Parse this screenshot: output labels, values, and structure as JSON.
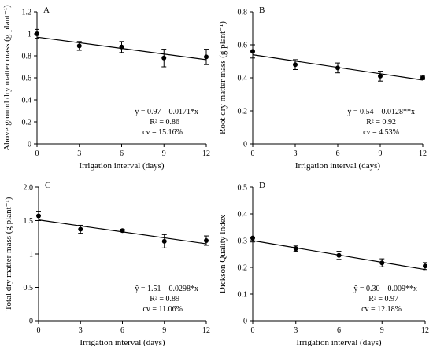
{
  "chart_data": [
    {
      "type": "scatter",
      "panel_label": "A",
      "xlabel": "Irrigation interval (days)",
      "ylabel": "Above ground dry matter mass (g plant⁻¹)",
      "xlim": [
        0,
        12
      ],
      "ylim": [
        0,
        1.2
      ],
      "x_ticks": [
        0,
        3,
        6,
        9,
        12
      ],
      "y_ticks": [
        0,
        0.2,
        0.4,
        0.6,
        0.8,
        1.0,
        1.2
      ],
      "y_tick_labels": [
        "0",
        "0.2",
        "0.4",
        "0.6",
        "0.8",
        "1",
        "1.2"
      ],
      "x": [
        0,
        3,
        6,
        9,
        12
      ],
      "values": [
        1.0,
        0.89,
        0.88,
        0.78,
        0.79
      ],
      "errors": [
        0.04,
        0.04,
        0.05,
        0.08,
        0.07
      ],
      "fit": {
        "intercept": 0.97,
        "slope": -0.0171
      },
      "equation": "ŷ = 0.97 – 0.0171*x",
      "r2": "R² = 0.86",
      "cv": "cv = 15.16%"
    },
    {
      "type": "scatter",
      "panel_label": "B",
      "xlabel": "Irrigation interval (days)",
      "ylabel": "Root dry matter mass (g plant⁻¹)",
      "xlim": [
        0,
        12
      ],
      "ylim": [
        0,
        0.8
      ],
      "x_ticks": [
        0,
        3,
        6,
        9,
        12
      ],
      "y_ticks": [
        0,
        0.2,
        0.4,
        0.6,
        0.8
      ],
      "y_tick_labels": [
        "0",
        "0.2",
        "0.4",
        "0.6",
        "0.8"
      ],
      "x": [
        0,
        3,
        6,
        9,
        12
      ],
      "values": [
        0.56,
        0.48,
        0.46,
        0.41,
        0.4
      ],
      "errors": [
        0.04,
        0.03,
        0.03,
        0.03,
        0.01
      ],
      "fit": {
        "intercept": 0.54,
        "slope": -0.0128
      },
      "equation": "ŷ = 0.54 – 0.0128**x",
      "r2": "R² = 0.92",
      "cv": "cv = 4.53%"
    },
    {
      "type": "scatter",
      "panel_label": "C",
      "xlabel": "Irrigation interval (days)",
      "ylabel": "Total dry matter mass (g plant⁻¹)",
      "xlim": [
        0,
        12
      ],
      "ylim": [
        0,
        2.0
      ],
      "x_ticks": [
        0,
        3,
        6,
        9,
        12
      ],
      "y_ticks": [
        0,
        0.5,
        1.0,
        1.5,
        2.0
      ],
      "y_tick_labels": [
        "0",
        "0.5",
        "1",
        "1.5",
        "2.0"
      ],
      "x": [
        0,
        3,
        6,
        9,
        12
      ],
      "values": [
        1.57,
        1.37,
        1.35,
        1.19,
        1.2
      ],
      "errors": [
        0.07,
        0.06,
        0.02,
        0.1,
        0.07
      ],
      "fit": {
        "intercept": 1.51,
        "slope": -0.0298
      },
      "equation": "ŷ = 1.51 – 0.0298*x",
      "r2": "R² = 0.89",
      "cv": "cv = 11.06%"
    },
    {
      "type": "scatter",
      "panel_label": "D",
      "xlabel": "Irrigation interval (days)",
      "ylabel": "Dickson Quality Index",
      "xlim": [
        0,
        12
      ],
      "ylim": [
        0,
        0.5
      ],
      "x_ticks": [
        0,
        3,
        6,
        9,
        12
      ],
      "y_ticks": [
        0,
        0.1,
        0.2,
        0.3,
        0.4,
        0.5
      ],
      "y_tick_labels": [
        "0",
        "0.1",
        "0.2",
        "0.3",
        "0.4",
        "0.5"
      ],
      "x": [
        0,
        3,
        6,
        9,
        12
      ],
      "values": [
        0.31,
        0.27,
        0.245,
        0.217,
        0.205
      ],
      "errors": [
        0.015,
        0.01,
        0.015,
        0.015,
        0.013
      ],
      "fit": {
        "intercept": 0.3,
        "slope": -0.009
      },
      "equation": "ŷ = 0.30 – 0.009**x",
      "r2": "R² = 0.97",
      "cv": "cv = 12.18%"
    }
  ]
}
